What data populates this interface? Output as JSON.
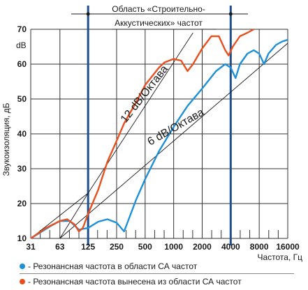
{
  "chart_data": {
    "type": "line",
    "ylabel": "Звукоизоляция, дБ",
    "yunit": "dB",
    "xlabel": "Частота, Гц",
    "x_ticks": [
      "31",
      "63",
      "125",
      "250",
      "500",
      "1000",
      "2000",
      "4000",
      "8000",
      "16000"
    ],
    "y_ticks": [
      "10",
      "20",
      "30",
      "40",
      "50",
      "60",
      "70"
    ],
    "ylim": [
      10,
      70
    ],
    "xscale": "log",
    "xlim": [
      31,
      16000
    ],
    "grid": true,
    "region_label": [
      "Область «Строительно-",
      "Аккустических» частот"
    ],
    "region_bounds": [
      125,
      4000
    ],
    "annotations": [
      "12 dB/Октава",
      "6 dB/Октава"
    ],
    "series": [
      {
        "name": "Резонансная частота в области СА частот",
        "color": "#1e90d8",
        "points": [
          [
            31,
            10
          ],
          [
            50,
            13.5
          ],
          [
            63,
            15
          ],
          [
            80,
            15
          ],
          [
            100,
            12.5
          ],
          [
            125,
            13
          ],
          [
            160,
            14.8
          ],
          [
            200,
            15.5
          ],
          [
            250,
            14.5
          ],
          [
            300,
            12
          ],
          [
            400,
            21
          ],
          [
            500,
            27
          ],
          [
            700,
            35
          ],
          [
            1000,
            42
          ],
          [
            1400,
            48
          ],
          [
            2000,
            53
          ],
          [
            2800,
            58
          ],
          [
            3500,
            60
          ],
          [
            4000,
            59
          ],
          [
            4500,
            56
          ],
          [
            5000,
            60
          ],
          [
            6000,
            63
          ],
          [
            7000,
            64
          ],
          [
            8000,
            63
          ],
          [
            9000,
            60
          ],
          [
            10000,
            63
          ],
          [
            12000,
            65.5
          ],
          [
            14000,
            66.5
          ],
          [
            16000,
            67
          ]
        ]
      },
      {
        "name": "Резонансная частота вынесена из области СА частот",
        "color": "#e8511f",
        "points": [
          [
            31,
            10
          ],
          [
            45,
            13
          ],
          [
            63,
            15
          ],
          [
            75,
            15.5
          ],
          [
            90,
            14
          ],
          [
            100,
            12
          ],
          [
            110,
            13
          ],
          [
            125,
            17
          ],
          [
            160,
            24
          ],
          [
            200,
            32
          ],
          [
            250,
            38
          ],
          [
            300,
            43
          ],
          [
            400,
            49
          ],
          [
            500,
            54
          ],
          [
            700,
            59
          ],
          [
            800,
            60.5
          ],
          [
            1000,
            61.5
          ],
          [
            1200,
            61
          ],
          [
            1400,
            58
          ],
          [
            1600,
            60
          ],
          [
            2000,
            64.5
          ],
          [
            2500,
            68
          ],
          [
            3000,
            68
          ],
          [
            3500,
            64
          ],
          [
            3800,
            62.5
          ],
          [
            4200,
            65
          ],
          [
            5000,
            68
          ],
          [
            6000,
            69
          ],
          [
            7000,
            70
          ]
        ]
      }
    ],
    "reference_lines": [
      {
        "label": "12 dB/Октава",
        "points": [
          [
            125,
            23
          ],
          [
            1600,
            69
          ]
        ]
      },
      {
        "label": "6 dB/Октава",
        "points": [
          [
            63,
            10
          ],
          [
            16000,
            66
          ]
        ]
      }
    ]
  },
  "legend": [
    {
      "text": "- Резонансная частота в области СА частот",
      "color": "#1e90d8"
    },
    {
      "text": "- Резонансная частота вынесена из области СА частот",
      "color": "#e8511f"
    }
  ]
}
